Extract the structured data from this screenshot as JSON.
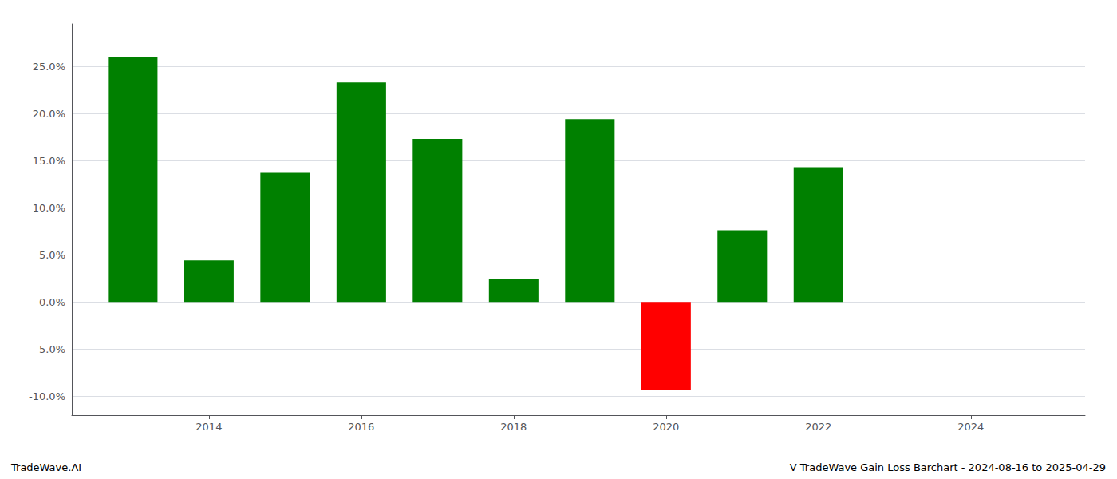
{
  "chart_data": {
    "type": "bar",
    "x": [
      2013,
      2014,
      2015,
      2016,
      2017,
      2018,
      2019,
      2020,
      2021,
      2022
    ],
    "values": [
      0.26,
      0.044,
      0.137,
      0.233,
      0.173,
      0.024,
      0.194,
      -0.093,
      0.076,
      0.143
    ],
    "colors": [
      "#008000",
      "#008000",
      "#008000",
      "#008000",
      "#008000",
      "#008000",
      "#008000",
      "#ff0000",
      "#008000",
      "#008000"
    ],
    "xlim": [
      2012.2,
      2025.5
    ],
    "xticks": [
      2014,
      2016,
      2018,
      2020,
      2022,
      2024
    ],
    "ylim": [
      -0.12,
      0.295
    ],
    "yticks": [
      {
        "value": -0.1,
        "label": "-10.0%"
      },
      {
        "value": -0.05,
        "label": "-5.0%"
      },
      {
        "value": 0.0,
        "label": "0.0%"
      },
      {
        "value": 0.05,
        "label": "5.0%"
      },
      {
        "value": 0.1,
        "label": "10.0%"
      },
      {
        "value": 0.15,
        "label": "15.0%"
      },
      {
        "value": 0.2,
        "label": "20.0%"
      },
      {
        "value": 0.25,
        "label": "25.0%"
      }
    ],
    "grid": true,
    "annotations": [
      "TradeWave.AI",
      "V TradeWave Gain Loss Barchart - 2024-08-16 to 2025-04-29"
    ]
  }
}
